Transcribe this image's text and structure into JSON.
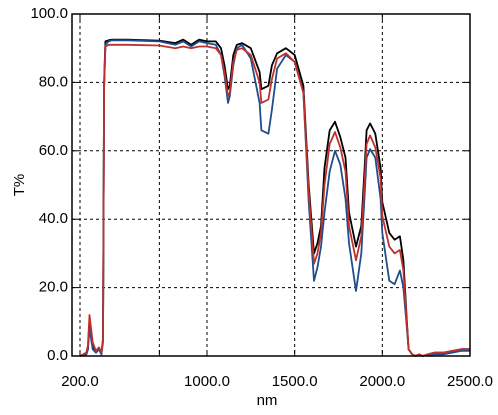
{
  "chart_data": {
    "type": "line",
    "title": "",
    "xlabel": "nm",
    "ylabel": "T%",
    "xlim": [
      200,
      2500
    ],
    "ylim": [
      0,
      100
    ],
    "grid": true,
    "x_ticks": [
      200,
      700,
      1000,
      1500,
      2000,
      2500
    ],
    "x_tick_labels": [
      "200.0",
      "",
      "1000.0",
      "1500.0",
      "2000.0",
      "2500.0"
    ],
    "y_ticks": [
      0,
      20,
      40,
      60,
      80,
      100
    ],
    "y_tick_labels": [
      "0.0",
      "20.0",
      "40.0",
      "60.0",
      "80.0",
      "100.0"
    ],
    "series": [
      {
        "color": "#000000",
        "x": [
          200,
          240,
          250,
          260,
          280,
          300,
          320,
          335,
          345,
          352,
          360,
          380,
          400,
          500,
          700,
          800,
          850,
          900,
          950,
          1000,
          1050,
          1080,
          1100,
          1120,
          1130,
          1150,
          1170,
          1200,
          1250,
          1300,
          1310,
          1350,
          1370,
          1400,
          1450,
          1500,
          1550,
          1580,
          1610,
          1630,
          1650,
          1670,
          1700,
          1730,
          1760,
          1790,
          1810,
          1850,
          1880,
          1900,
          1910,
          1930,
          1960,
          1990,
          2000,
          2040,
          2070,
          2100,
          2120,
          2140,
          2150,
          2170,
          2190,
          2210,
          2230,
          2260,
          2300,
          2350,
          2400,
          2450,
          2500
        ],
        "y": [
          0,
          0.5,
          2,
          10,
          3,
          1,
          2,
          0.5,
          5,
          80,
          92,
          92.3,
          92.5,
          92.5,
          92.2,
          91.5,
          92.5,
          91,
          92.5,
          92,
          92,
          90,
          85,
          78,
          79,
          88,
          91,
          91.5,
          90,
          83,
          78,
          79,
          85,
          88.5,
          90,
          88,
          79,
          50,
          30,
          33,
          38,
          55,
          66,
          68.5,
          64,
          58,
          42,
          32,
          38,
          56,
          66,
          68,
          65,
          55,
          45,
          36,
          34,
          35,
          28,
          10,
          2,
          0.5,
          0,
          0.5,
          0,
          0.5,
          1,
          1,
          1.5,
          2,
          2
        ]
      },
      {
        "color": "#1f4e8c",
        "x": [
          200,
          240,
          250,
          260,
          280,
          300,
          320,
          335,
          345,
          352,
          360,
          380,
          400,
          500,
          700,
          800,
          850,
          900,
          950,
          1000,
          1050,
          1080,
          1100,
          1120,
          1130,
          1150,
          1170,
          1200,
          1250,
          1300,
          1310,
          1350,
          1370,
          1400,
          1450,
          1500,
          1550,
          1580,
          1610,
          1630,
          1650,
          1670,
          1700,
          1730,
          1760,
          1790,
          1810,
          1850,
          1880,
          1900,
          1910,
          1930,
          1960,
          1990,
          2000,
          2040,
          2070,
          2100,
          2120,
          2140,
          2150,
          2170,
          2190,
          2210,
          2230,
          2260,
          2300,
          2350,
          2400,
          2450,
          2500
        ],
        "y": [
          0,
          0.5,
          2,
          8,
          2,
          1,
          2,
          0.5,
          4,
          78,
          91,
          92,
          92.3,
          92.3,
          92,
          91,
          92,
          90.5,
          92,
          91.5,
          91,
          88,
          82,
          74,
          76,
          85,
          90,
          91,
          87,
          74,
          66,
          65,
          72,
          84,
          88,
          86,
          77,
          45,
          22,
          26,
          32,
          42,
          54,
          60,
          56,
          46,
          33,
          19,
          30,
          48,
          58,
          60.5,
          58,
          46,
          36,
          22,
          21,
          25,
          20,
          8,
          2,
          0.5,
          0,
          0.3,
          0,
          0.3,
          0.5,
          0.5,
          1,
          1.5,
          1.5
        ]
      },
      {
        "color": "#c0302c",
        "x": [
          200,
          240,
          250,
          260,
          280,
          300,
          320,
          335,
          345,
          352,
          360,
          380,
          400,
          500,
          700,
          800,
          850,
          900,
          950,
          1000,
          1050,
          1080,
          1100,
          1120,
          1130,
          1150,
          1170,
          1200,
          1250,
          1300,
          1310,
          1350,
          1370,
          1400,
          1450,
          1500,
          1550,
          1580,
          1610,
          1630,
          1650,
          1670,
          1700,
          1730,
          1760,
          1790,
          1810,
          1850,
          1880,
          1900,
          1910,
          1930,
          1960,
          1990,
          2000,
          2040,
          2070,
          2100,
          2120,
          2140,
          2150,
          2170,
          2190,
          2210,
          2230,
          2260,
          2300,
          2350,
          2400,
          2450,
          2500
        ],
        "y": [
          0,
          1,
          3,
          12,
          4,
          1.5,
          2.5,
          1,
          5,
          79,
          90.5,
          91,
          91,
          91,
          90.8,
          90,
          90.5,
          90,
          90.5,
          90.5,
          90,
          88,
          83,
          76,
          77,
          86,
          89.5,
          90,
          88,
          80,
          74,
          75,
          81,
          87,
          88.5,
          86,
          77,
          48,
          27,
          30,
          36,
          50,
          62,
          65.5,
          61,
          54,
          38,
          28,
          35,
          52,
          62,
          64.5,
          61,
          52,
          41,
          32,
          30,
          31,
          25,
          9,
          2,
          0.5,
          0,
          0.5,
          0,
          0.5,
          1,
          1,
          1.5,
          2,
          2
        ]
      }
    ]
  }
}
